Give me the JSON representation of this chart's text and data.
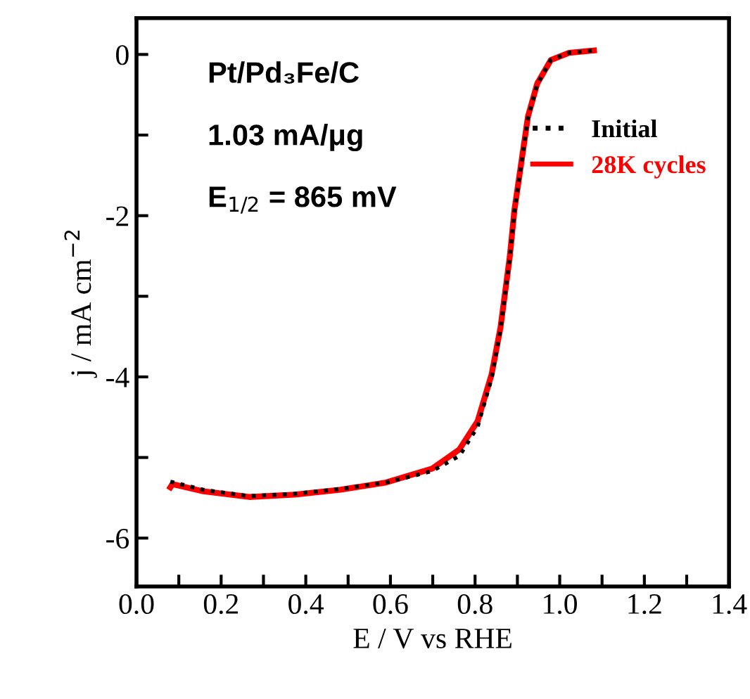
{
  "chart_data": {
    "type": "line",
    "xlabel": "E / V vs RHE",
    "ylabel": "j / mA cm$^{−2}$",
    "annotations": [
      "Pt/Pd₃Fe/C",
      "1.03 mA/μg",
      "E$_{1/2}$ = 865 mV"
    ],
    "series": [
      {
        "name": "Initial",
        "color": "#000000",
        "line_style": "dotted",
        "x": [
          0.08,
          0.158,
          0.266,
          0.374,
          0.482,
          0.59,
          0.698,
          0.763,
          0.806,
          0.839,
          0.86,
          0.882,
          0.893,
          0.909,
          0.925,
          0.947,
          0.979,
          1.022,
          1.081
        ],
        "values": [
          -5.3,
          -5.4,
          -5.48,
          -5.45,
          -5.39,
          -5.31,
          -5.17,
          -4.98,
          -4.62,
          -4.02,
          -3.42,
          -2.53,
          -1.95,
          -1.37,
          -0.79,
          -0.37,
          -0.07,
          0.02,
          0.05
        ]
      },
      {
        "name": "28K cycles",
        "color": "#ff0000",
        "line_style": "solid",
        "x": [
          0.08,
          0.085,
          0.158,
          0.266,
          0.374,
          0.482,
          0.59,
          0.698,
          0.763,
          0.806,
          0.839,
          0.86,
          0.882,
          0.893,
          0.909,
          0.925,
          0.947,
          0.979,
          1.022,
          1.081
        ],
        "values": [
          -5.37,
          -5.33,
          -5.42,
          -5.49,
          -5.46,
          -5.4,
          -5.31,
          -5.14,
          -4.9,
          -4.55,
          -3.97,
          -3.39,
          -2.51,
          -1.93,
          -1.35,
          -0.77,
          -0.36,
          -0.07,
          0.02,
          0.05
        ]
      }
    ],
    "xlim": [
      0.0,
      1.4
    ],
    "xticks": [
      {
        "value": 0,
        "label": "0.0"
      },
      {
        "value": 0.1,
        "label": null
      },
      0.2,
      {
        "value": 0.3,
        "label": null
      },
      0.4,
      {
        "value": 0.5,
        "label": null
      },
      0.6,
      {
        "value": 0.7,
        "label": null
      },
      0.8,
      {
        "value": 0.9,
        "label": null
      },
      {
        "value": 1,
        "label": "1.0"
      },
      {
        "value": 1.1,
        "label": null
      },
      1.2,
      {
        "value": 1.3,
        "label": null
      },
      1.4
    ],
    "ylim": [
      -6.6,
      0.45
    ],
    "yticks": [
      0,
      {
        "value": -1,
        "label": null
      },
      -2,
      {
        "value": -3,
        "label": null
      },
      -4,
      {
        "value": -5,
        "label": null
      },
      -6
    ],
    "legend": "right",
    "grid": false
  }
}
